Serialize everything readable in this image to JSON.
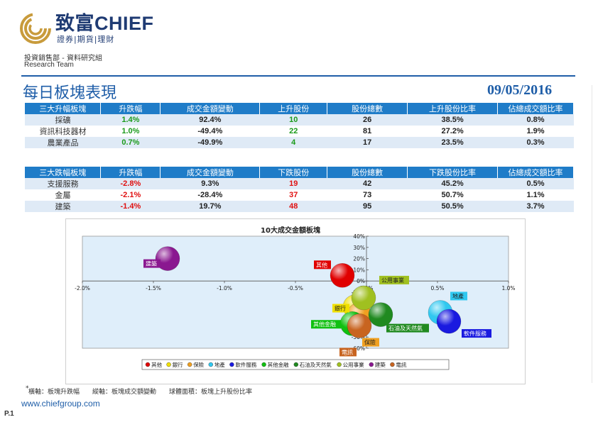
{
  "header": {
    "logo_cn": "致富",
    "logo_en": "CHIEF",
    "logo_sub": "證券|期貨|理財",
    "dept": "投資銷售部 - 資料研究組",
    "team": "Research Team"
  },
  "title": "每日板塊表現",
  "date": "09/05/2016",
  "gainers": {
    "headers": [
      "三大升幅板塊",
      "升跌幅",
      "成交金額變動",
      "上升股份",
      "股份總數",
      "上升股份比率",
      "佔總成交額比率"
    ],
    "rows": [
      [
        "採礦",
        "1.4%",
        "92.4%",
        "10",
        "26",
        "38.5%",
        "0.8%"
      ],
      [
        "資訊科技器材",
        "1.0%",
        "-49.4%",
        "22",
        "81",
        "27.2%",
        "1.9%"
      ],
      [
        "農業產品",
        "0.7%",
        "-49.9%",
        "4",
        "17",
        "23.5%",
        "0.3%"
      ]
    ]
  },
  "losers": {
    "headers": [
      "三大跌幅板塊",
      "升跌幅",
      "成交金額變動",
      "下跌股份",
      "股份總數",
      "下跌股份比率",
      "佔總成交額比率"
    ],
    "rows": [
      [
        "支援服務",
        "-2.8%",
        "9.3%",
        "19",
        "42",
        "45.2%",
        "0.5%"
      ],
      [
        "金屬",
        "-2.1%",
        "-28.4%",
        "37",
        "73",
        "50.7%",
        "1.1%"
      ],
      [
        "建築",
        "-1.4%",
        "19.7%",
        "48",
        "95",
        "50.5%",
        "3.7%"
      ]
    ]
  },
  "chart_data": {
    "type": "scatter",
    "title": "10大成交金額板塊",
    "xlim": [
      -2.0,
      1.0
    ],
    "ylim": [
      -60,
      40
    ],
    "x_ticks": [
      "-2.0%",
      "-1.5%",
      "-1.0%",
      "-0.5%",
      "0.0%",
      "0.5%",
      "1.0%"
    ],
    "y_ticks": [
      "40%",
      "30%",
      "20%",
      "10%",
      "0%",
      "-10%",
      "-20%",
      "-30%",
      "-40%",
      "-50%",
      "-60%"
    ],
    "series": [
      {
        "name": "其他",
        "x": -0.17,
        "y": 5,
        "color": "#e00000"
      },
      {
        "name": "銀行",
        "x": -0.08,
        "y": -23,
        "color": "#f0e000"
      },
      {
        "name": "保險",
        "x": -0.05,
        "y": -30,
        "color": "#f0a020"
      },
      {
        "name": "地產",
        "x": 0.52,
        "y": -28,
        "color": "#30c8f0"
      },
      {
        "name": "軟件服務",
        "x": 0.58,
        "y": -36,
        "color": "#1a1ae0"
      },
      {
        "name": "其他金融",
        "x": -0.1,
        "y": -38,
        "color": "#10c010"
      },
      {
        "name": "石油及天然氣",
        "x": 0.1,
        "y": -30,
        "color": "#208a20"
      },
      {
        "name": "公用事業",
        "x": -0.02,
        "y": -15,
        "color": "#a0c020"
      },
      {
        "name": "建築",
        "x": -1.4,
        "y": 20,
        "color": "#8a1890"
      },
      {
        "name": "電訊",
        "x": -0.05,
        "y": -40,
        "color": "#c86420"
      }
    ]
  },
  "footnote": {
    "star": "*",
    "text": "橫軸：板塊升跌幅　　縱軸：板塊成交額變動　　球體面積：板塊上升股份比率"
  },
  "website": "www.chiefgroup.com",
  "page_number": "P.1"
}
